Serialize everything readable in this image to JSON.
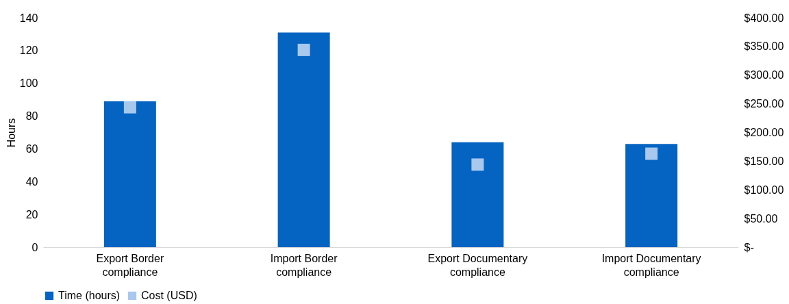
{
  "chart_data": {
    "type": "bar",
    "categories": [
      "Export Border compliance",
      "Import Border compliance",
      "Export Documentary compliance",
      "Import Documentary compliance"
    ],
    "series": [
      {
        "name": "Time (hours)",
        "color": "#0563c1",
        "values": [
          89,
          131,
          64,
          63
        ]
      },
      {
        "name": "Cost (USD)",
        "color": "#a9c8ee",
        "type": "scatter",
        "marker": "square",
        "axis": "y2",
        "values": [
          244,
          344,
          144,
          163
        ]
      }
    ],
    "ylabel": "Hours",
    "ylim": [
      0,
      140
    ],
    "yticks": [
      0,
      20,
      40,
      60,
      80,
      100,
      120,
      140
    ],
    "y2lim": [
      0,
      400
    ],
    "y2ticks": [
      {
        "value": 0,
        "label": "$-"
      },
      {
        "value": 50,
        "label": "$50.00"
      },
      {
        "value": 100,
        "label": "$100.00"
      },
      {
        "value": 150,
        "label": "$150.00"
      },
      {
        "value": 200,
        "label": "$200.00"
      },
      {
        "value": 250,
        "label": "$250.00"
      },
      {
        "value": 300,
        "label": "$300.00"
      },
      {
        "value": 350,
        "label": "$350.00"
      },
      {
        "value": 400,
        "label": "$400.00"
      }
    ],
    "legend": "bottom"
  }
}
